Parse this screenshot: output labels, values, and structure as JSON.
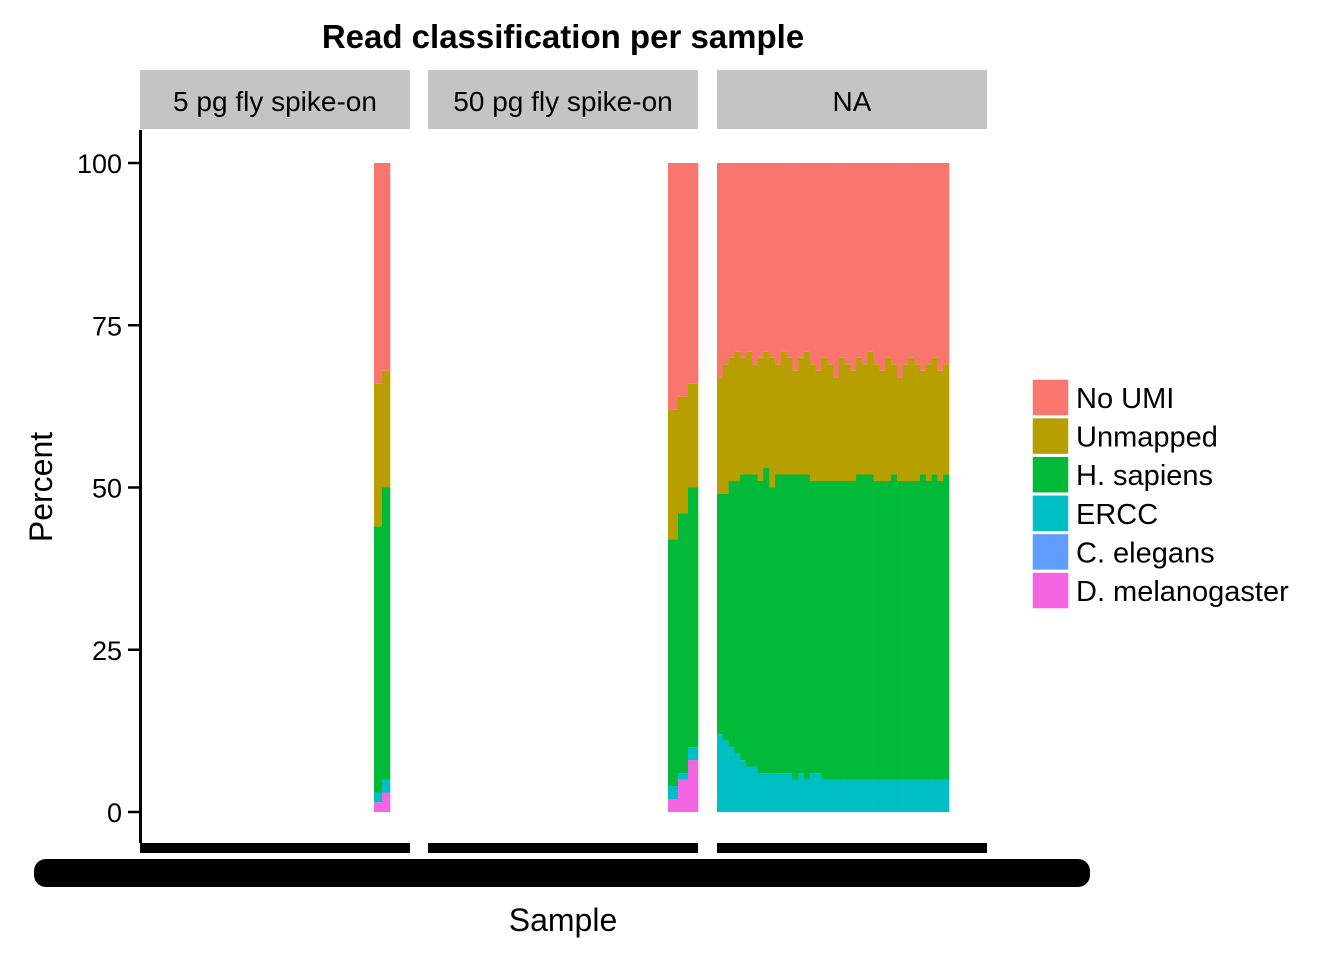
{
  "chart_data": {
    "type": "bar",
    "stacked": true,
    "title": "Read classification per sample",
    "xlabel": "Sample",
    "ylabel": "Percent",
    "ylim": [
      0,
      100
    ],
    "yticks": [
      "0",
      "25",
      "50",
      "75",
      "100"
    ],
    "facets": [
      "5 pg fly spike-on",
      "50 pg fly spike-on",
      "NA"
    ],
    "legend_position": "right",
    "x_tick_labels_note": "x tick labels overplotted (illegible)",
    "series": [
      {
        "name": "No UMI",
        "color": "#F8766D"
      },
      {
        "name": "Unmapped",
        "color": "#B79F00"
      },
      {
        "name": "H. sapiens",
        "color": "#00BA38"
      },
      {
        "name": "ERCC",
        "color": "#00BFC4"
      },
      {
        "name": "C. elegans",
        "color": "#619CFF"
      },
      {
        "name": "D. melanogaster",
        "color": "#F564E3"
      }
    ],
    "panels": [
      {
        "facet": "5 pg fly spike-on",
        "samples": [
          {
            "No UMI": 34,
            "Unmapped": 22,
            "H. sapiens": 41,
            "ERCC": 1.5,
            "C. elegans": 0,
            "D. melanogaster": 1.5
          },
          {
            "No UMI": 32,
            "Unmapped": 18,
            "H. sapiens": 45,
            "ERCC": 2,
            "C. elegans": 0,
            "D. melanogaster": 3
          }
        ]
      },
      {
        "facet": "50 pg fly spike-on",
        "samples": [
          {
            "No UMI": 38,
            "Unmapped": 20,
            "H. sapiens": 38,
            "ERCC": 2,
            "C. elegans": 0,
            "D. melanogaster": 2
          },
          {
            "No UMI": 36,
            "Unmapped": 18,
            "H. sapiens": 40,
            "ERCC": 1,
            "C. elegans": 0,
            "D. melanogaster": 5
          },
          {
            "No UMI": 34,
            "Unmapped": 16,
            "H. sapiens": 40,
            "ERCC": 2,
            "C. elegans": 0,
            "D. melanogaster": 8
          }
        ]
      },
      {
        "facet": "NA",
        "samples": [
          {
            "No UMI": 33,
            "Unmapped": 18,
            "H. sapiens": 37,
            "ERCC": 12,
            "C. elegans": 0,
            "D. melanogaster": 0
          },
          {
            "No UMI": 31,
            "Unmapped": 20,
            "H. sapiens": 38,
            "ERCC": 11,
            "C. elegans": 0,
            "D. melanogaster": 0
          },
          {
            "No UMI": 30,
            "Unmapped": 19,
            "H. sapiens": 41,
            "ERCC": 10,
            "C. elegans": 0,
            "D. melanogaster": 0
          },
          {
            "No UMI": 29,
            "Unmapped": 20,
            "H. sapiens": 42,
            "ERCC": 9,
            "C. elegans": 0,
            "D. melanogaster": 0
          },
          {
            "No UMI": 30,
            "Unmapped": 18,
            "H. sapiens": 44,
            "ERCC": 8,
            "C. elegans": 0,
            "D. melanogaster": 0
          },
          {
            "No UMI": 29,
            "Unmapped": 19,
            "H. sapiens": 45,
            "ERCC": 7,
            "C. elegans": 0,
            "D. melanogaster": 0
          },
          {
            "No UMI": 31,
            "Unmapped": 17,
            "H. sapiens": 45,
            "ERCC": 7,
            "C. elegans": 0,
            "D. melanogaster": 0
          },
          {
            "No UMI": 30,
            "Unmapped": 19,
            "H. sapiens": 45,
            "ERCC": 6,
            "C. elegans": 0,
            "D. melanogaster": 0
          },
          {
            "No UMI": 29,
            "Unmapped": 18,
            "H. sapiens": 47,
            "ERCC": 6,
            "C. elegans": 0,
            "D. melanogaster": 0
          },
          {
            "No UMI": 30,
            "Unmapped": 20,
            "H. sapiens": 44,
            "ERCC": 6,
            "C. elegans": 0,
            "D. melanogaster": 0
          },
          {
            "No UMI": 31,
            "Unmapped": 17,
            "H. sapiens": 46,
            "ERCC": 6,
            "C. elegans": 0,
            "D. melanogaster": 0
          },
          {
            "No UMI": 29,
            "Unmapped": 19,
            "H. sapiens": 46,
            "ERCC": 6,
            "C. elegans": 0,
            "D. melanogaster": 0
          },
          {
            "No UMI": 30,
            "Unmapped": 18,
            "H. sapiens": 46,
            "ERCC": 6,
            "C. elegans": 0,
            "D. melanogaster": 0
          },
          {
            "No UMI": 32,
            "Unmapped": 16,
            "H. sapiens": 47,
            "ERCC": 5,
            "C. elegans": 0,
            "D. melanogaster": 0
          },
          {
            "No UMI": 30,
            "Unmapped": 18,
            "H. sapiens": 46,
            "ERCC": 6,
            "C. elegans": 0,
            "D. melanogaster": 0
          },
          {
            "No UMI": 29,
            "Unmapped": 19,
            "H. sapiens": 47,
            "ERCC": 5,
            "C. elegans": 0,
            "D. melanogaster": 0
          },
          {
            "No UMI": 31,
            "Unmapped": 18,
            "H. sapiens": 45,
            "ERCC": 6,
            "C. elegans": 0,
            "D. melanogaster": 0
          },
          {
            "No UMI": 32,
            "Unmapped": 17,
            "H. sapiens": 45,
            "ERCC": 6,
            "C. elegans": 0,
            "D. melanogaster": 0
          },
          {
            "No UMI": 30,
            "Unmapped": 19,
            "H. sapiens": 46,
            "ERCC": 5,
            "C. elegans": 0,
            "D. melanogaster": 0
          },
          {
            "No UMI": 31,
            "Unmapped": 18,
            "H. sapiens": 46,
            "ERCC": 5,
            "C. elegans": 0,
            "D. melanogaster": 0
          },
          {
            "No UMI": 33,
            "Unmapped": 16,
            "H. sapiens": 46,
            "ERCC": 5,
            "C. elegans": 0,
            "D. melanogaster": 0
          },
          {
            "No UMI": 30,
            "Unmapped": 19,
            "H. sapiens": 46,
            "ERCC": 5,
            "C. elegans": 0,
            "D. melanogaster": 0
          },
          {
            "No UMI": 31,
            "Unmapped": 18,
            "H. sapiens": 46,
            "ERCC": 5,
            "C. elegans": 0,
            "D. melanogaster": 0
          },
          {
            "No UMI": 32,
            "Unmapped": 17,
            "H. sapiens": 46,
            "ERCC": 5,
            "C. elegans": 0,
            "D. melanogaster": 0
          },
          {
            "No UMI": 30,
            "Unmapped": 18,
            "H. sapiens": 47,
            "ERCC": 5,
            "C. elegans": 0,
            "D. melanogaster": 0
          },
          {
            "No UMI": 31,
            "Unmapped": 17,
            "H. sapiens": 47,
            "ERCC": 5,
            "C. elegans": 0,
            "D. melanogaster": 0
          },
          {
            "No UMI": 29,
            "Unmapped": 19,
            "H. sapiens": 47,
            "ERCC": 5,
            "C. elegans": 0,
            "D. melanogaster": 0
          },
          {
            "No UMI": 31,
            "Unmapped": 18,
            "H. sapiens": 46,
            "ERCC": 5,
            "C. elegans": 0,
            "D. melanogaster": 0
          },
          {
            "No UMI": 32,
            "Unmapped": 17,
            "H. sapiens": 46,
            "ERCC": 5,
            "C. elegans": 0,
            "D. melanogaster": 0
          },
          {
            "No UMI": 30,
            "Unmapped": 19,
            "H. sapiens": 46,
            "ERCC": 5,
            "C. elegans": 0,
            "D. melanogaster": 0
          },
          {
            "No UMI": 31,
            "Unmapped": 17,
            "H. sapiens": 47,
            "ERCC": 5,
            "C. elegans": 0,
            "D. melanogaster": 0
          },
          {
            "No UMI": 33,
            "Unmapped": 16,
            "H. sapiens": 46,
            "ERCC": 5,
            "C. elegans": 0,
            "D. melanogaster": 0
          },
          {
            "No UMI": 31,
            "Unmapped": 18,
            "H. sapiens": 46,
            "ERCC": 5,
            "C. elegans": 0,
            "D. melanogaster": 0
          },
          {
            "No UMI": 30,
            "Unmapped": 19,
            "H. sapiens": 46,
            "ERCC": 5,
            "C. elegans": 0,
            "D. melanogaster": 0
          },
          {
            "No UMI": 31,
            "Unmapped": 18,
            "H. sapiens": 46,
            "ERCC": 5,
            "C. elegans": 0,
            "D. melanogaster": 0
          },
          {
            "No UMI": 32,
            "Unmapped": 16,
            "H. sapiens": 47,
            "ERCC": 5,
            "C. elegans": 0,
            "D. melanogaster": 0
          },
          {
            "No UMI": 31,
            "Unmapped": 18,
            "H. sapiens": 46,
            "ERCC": 5,
            "C. elegans": 0,
            "D. melanogaster": 0
          },
          {
            "No UMI": 30,
            "Unmapped": 18,
            "H. sapiens": 47,
            "ERCC": 5,
            "C. elegans": 0,
            "D. melanogaster": 0
          },
          {
            "No UMI": 32,
            "Unmapped": 17,
            "H. sapiens": 46,
            "ERCC": 5,
            "C. elegans": 0,
            "D. melanogaster": 0
          },
          {
            "No UMI": 31,
            "Unmapped": 17,
            "H. sapiens": 47,
            "ERCC": 5,
            "C. elegans": 0,
            "D. melanogaster": 0
          }
        ]
      }
    ]
  }
}
